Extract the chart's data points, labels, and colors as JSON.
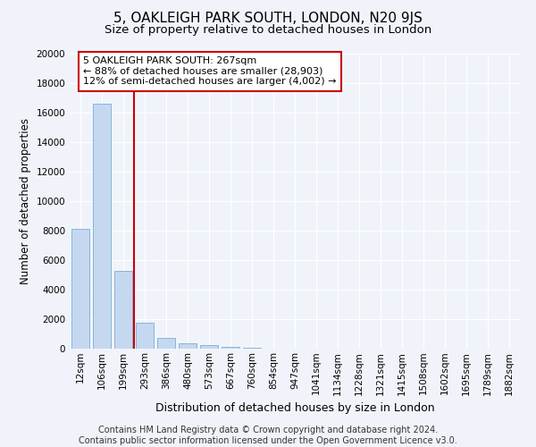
{
  "title": "5, OAKLEIGH PARK SOUTH, LONDON, N20 9JS",
  "subtitle": "Size of property relative to detached houses in London",
  "xlabel": "Distribution of detached houses by size in London",
  "ylabel": "Number of detached properties",
  "footer_line1": "Contains HM Land Registry data © Crown copyright and database right 2024.",
  "footer_line2": "Contains public sector information licensed under the Open Government Licence v3.0.",
  "categories": [
    "12sqm",
    "106sqm",
    "199sqm",
    "293sqm",
    "386sqm",
    "480sqm",
    "573sqm",
    "667sqm",
    "760sqm",
    "854sqm",
    "947sqm",
    "1041sqm",
    "1134sqm",
    "1228sqm",
    "1321sqm",
    "1415sqm",
    "1508sqm",
    "1602sqm",
    "1695sqm",
    "1789sqm",
    "1882sqm"
  ],
  "values": [
    8100,
    16600,
    5300,
    1750,
    700,
    350,
    230,
    130,
    90,
    0,
    0,
    0,
    0,
    0,
    0,
    0,
    0,
    0,
    0,
    0,
    0
  ],
  "bar_color": "#c5d8f0",
  "bar_edge_color": "#7aadd4",
  "vline_x": 2.5,
  "vline_color": "#cc0000",
  "annotation_text": "5 OAKLEIGH PARK SOUTH: 267sqm\n← 88% of detached houses are smaller (28,903)\n12% of semi-detached houses are larger (4,002) →",
  "annotation_box_color": "#ffffff",
  "annotation_box_edge": "#cc0000",
  "ylim": [
    0,
    20000
  ],
  "yticks": [
    0,
    2000,
    4000,
    6000,
    8000,
    10000,
    12000,
    14000,
    16000,
    18000,
    20000
  ],
  "background_color": "#f0f4fa",
  "grid_color": "#ffffff",
  "title_fontsize": 11,
  "subtitle_fontsize": 9.5,
  "xlabel_fontsize": 9,
  "ylabel_fontsize": 8.5,
  "tick_fontsize": 7.5,
  "footer_fontsize": 7
}
